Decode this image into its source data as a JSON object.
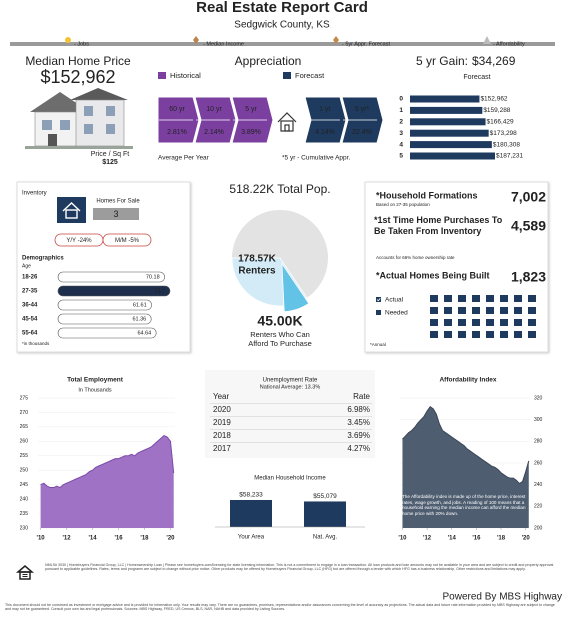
{
  "header": {
    "title": "Real Estate Report Card",
    "subtitle": "Sedgwick County, KS",
    "legend": [
      "- Jobs",
      "- Median Income",
      "- 5yr Appr. Forecast",
      "- Affordability"
    ]
  },
  "home_price": {
    "label": "Median Home Price",
    "value": "$152,962",
    "sqft_label": "Price / Sq Ft",
    "sqft_value": "$125"
  },
  "appreciation": {
    "title": "Appreciation",
    "legend": [
      "Historical",
      "Forecast"
    ],
    "historical": [
      {
        "period": "60 yr",
        "rate": "2.81%"
      },
      {
        "period": "10 yr",
        "rate": "2.14%"
      },
      {
        "period": "5 yr",
        "rate": "3.89%"
      }
    ],
    "forecast": [
      {
        "period": "1 yr",
        "rate": "4.14%"
      },
      {
        "period": "5 yr*",
        "rate": "22.4%"
      }
    ],
    "note_left": "Average Per Year",
    "note_right": "*5 yr - Cumulative Appr."
  },
  "gain": {
    "label": "5 yr Gain:",
    "value": "$34,269"
  },
  "inventory": {
    "label": "Inventory",
    "homes_for_sale_label": "Homes For Sale",
    "homes_for_sale": "3",
    "yoy": "Y/Y -24%",
    "mom": "M/M -5%"
  },
  "housing_needs": {
    "items": [
      {
        "label": "*Household Formations",
        "note": "Based on 27-35 population",
        "value": "7,002"
      },
      {
        "label": "*1st Time Home Purchases To Be Taken From Inventory",
        "note": "Accounts for 66% home ownership rate",
        "value": "4,589"
      },
      {
        "label": "*Actual Homes Being Built",
        "value": "1,823"
      }
    ],
    "legend": [
      "Actual",
      "Needed"
    ],
    "footnote": "*Annual"
  },
  "unemployment": {
    "title": "Unemployment Rate",
    "subtitle": "National Average: 13.3%",
    "header": [
      "Year",
      "Rate"
    ],
    "rows": [
      [
        "2020",
        "6.98%"
      ],
      [
        "2019",
        "3.45%"
      ],
      [
        "2018",
        "3.69%"
      ],
      [
        "2017",
        "4.27%"
      ]
    ]
  },
  "footer": {
    "disclaimer_top": "NMLS# 3030 | Homebuyers Financial Group, LLC | Homeownership Loan | Please see homebuyers.com/licensing for state licensing information. This is not a commitment to engage in a loan transaction. All loan products and loan amounts may not be available in your area and are subject to credit and property approval pursuant to applicable guidelines. Rates, terms and programs are subject to change without prior notice. Other products may be offered by Homebuyers Financial Group, LLC (HFG) but are offered through a lender with which HFG has a business relationship. Other restrictions and limitations may apply.",
    "powered_by": "Powered By MBS Highway",
    "disclaimer_bottom": "This document should not be construed as investment or mortgage advice and is provided for information only. Your results may vary. There are no guarantees, promises, representations and/or assurances concerning the level of accuracy as projections. The actual data and future rate information provided by MBS Highway are subject to change and may not be guaranteed. Consult your own tax and legal professionals. Sources: MBS Highway, FRED, US Census, BLS, NAR, NAHB and data provided by Listing Sources."
  },
  "chart_data": [
    {
      "type": "hbar",
      "title": "Forecast",
      "categories": [
        "0",
        "1",
        "2",
        "3",
        "4",
        "5"
      ],
      "values": [
        152962,
        159288,
        166429,
        173298,
        180308,
        187231
      ],
      "value_labels": [
        "$152,962",
        "$159,288",
        "$166,429",
        "$173,298",
        "$180,308",
        "$187,231"
      ],
      "color": "#1e3a5f"
    },
    {
      "type": "hbar",
      "title": "Demographics",
      "subtitle": "Age",
      "note": "*in thousands",
      "categories": [
        "18-26",
        "27-35",
        "36-44",
        "45-54",
        "55-64"
      ],
      "values": [
        70.18,
        73.7,
        61.61,
        61.36,
        64.64
      ],
      "colors": [
        "#ffffff",
        "#1e2f4d",
        "#ffffff",
        "#ffffff",
        "#ffffff"
      ]
    },
    {
      "type": "pie",
      "total": {
        "value": 518.22,
        "label": "518.22K Total Pop."
      },
      "categories": [
        "Renters",
        "Renters Who Can Afford To Purchase"
      ],
      "values": [
        178.57,
        45.0
      ],
      "value_labels": [
        "178.57K",
        "45.00K"
      ],
      "colors": [
        "#d3ebf7",
        "#62c3e6"
      ],
      "total_color": "#e3e3e3"
    },
    {
      "type": "area",
      "title": "Total Employment",
      "subtitle": "In Thousands",
      "color": "#9f72c6",
      "line_color": "#7b4aa8",
      "axis_side": "left",
      "x": [
        2010,
        2010.25,
        2010.5,
        2010.75,
        2011,
        2011.25,
        2011.5,
        2011.75,
        2012,
        2012.25,
        2012.5,
        2012.75,
        2013,
        2013.25,
        2013.5,
        2013.75,
        2014,
        2014.25,
        2014.5,
        2014.75,
        2015,
        2015.25,
        2015.5,
        2015.75,
        2016,
        2016.25,
        2016.5,
        2016.75,
        2017,
        2017.25,
        2017.5,
        2017.75,
        2018,
        2018.25,
        2018.5,
        2018.75,
        2019,
        2019.25,
        2019.5,
        2019.75,
        2020,
        2020.25
      ],
      "values": [
        245,
        245.5,
        244.5,
        244,
        244,
        244.5,
        244,
        245,
        245.5,
        246,
        246.5,
        247,
        247.5,
        248,
        248.5,
        249.5,
        250,
        251,
        251.5,
        252,
        252.5,
        253,
        253.5,
        254,
        254,
        254.5,
        255,
        255,
        255.5,
        255,
        256,
        256.5,
        257,
        257.5,
        258,
        259,
        260,
        261,
        262,
        261.5,
        260,
        249
      ],
      "xlim": [
        2009.8,
        2020.35
      ],
      "xticks": [
        {
          "value": 2010,
          "label": "'10"
        },
        {
          "value": 2012,
          "label": "'12"
        },
        {
          "value": 2014,
          "label": "'14"
        },
        {
          "value": 2016,
          "label": "'16"
        },
        {
          "value": 2018,
          "label": "'18"
        },
        {
          "value": 2020,
          "label": "'20"
        }
      ],
      "ylim": [
        230,
        275
      ],
      "yticks": [
        230,
        235,
        240,
        245,
        250,
        255,
        260,
        265,
        270,
        275
      ]
    },
    {
      "type": "area",
      "title": "Affordability Index",
      "color": "#4e5d70",
      "line_color": "#3a4757",
      "axis_side": "right",
      "annotation": "The Affordability index is made up of the home price, interest rates, wage growth, and jobs. A reading of 100 means that a household earning the median income can afford the median home price with 20% down.",
      "x": [
        2010,
        2010.25,
        2010.5,
        2010.75,
        2011,
        2011.25,
        2011.5,
        2011.75,
        2012,
        2012.25,
        2012.5,
        2012.75,
        2013,
        2013.25,
        2013.5,
        2013.75,
        2014,
        2014.25,
        2014.5,
        2014.75,
        2015,
        2015.25,
        2015.5,
        2015.75,
        2016,
        2016.25,
        2016.5,
        2016.75,
        2017,
        2017.25,
        2017.5,
        2017.75,
        2018,
        2018.25,
        2018.5,
        2018.75,
        2019,
        2019.25,
        2019.5,
        2019.75,
        2020,
        2020.25
      ],
      "values": [
        282,
        285,
        288,
        290,
        293,
        297,
        300,
        303,
        308,
        312,
        310,
        305,
        296,
        290,
        288,
        286,
        284,
        282,
        280,
        278,
        276,
        273,
        271,
        269,
        267,
        265,
        263,
        261,
        259,
        257,
        256,
        254,
        251,
        249,
        247,
        246,
        246,
        244,
        241,
        243,
        252,
        262
      ],
      "xlim": [
        2009.8,
        2020.35
      ],
      "xticks": [
        {
          "value": 2010,
          "label": "'10"
        },
        {
          "value": 2012,
          "label": "'12"
        },
        {
          "value": 2014,
          "label": "'14"
        },
        {
          "value": 2016,
          "label": "'16"
        },
        {
          "value": 2018,
          "label": "'18"
        },
        {
          "value": 2020,
          "label": "'20"
        }
      ],
      "ylim": [
        200,
        320
      ],
      "yticks": [
        200,
        220,
        240,
        260,
        280,
        300,
        320
      ]
    },
    {
      "type": "bar",
      "title": "Median Household Income",
      "categories": [
        "Your Area",
        "Nat. Avg."
      ],
      "values": [
        58233,
        55079
      ],
      "value_labels": [
        "$58,233",
        "$55,079"
      ],
      "color": "#1e3a5f"
    }
  ]
}
